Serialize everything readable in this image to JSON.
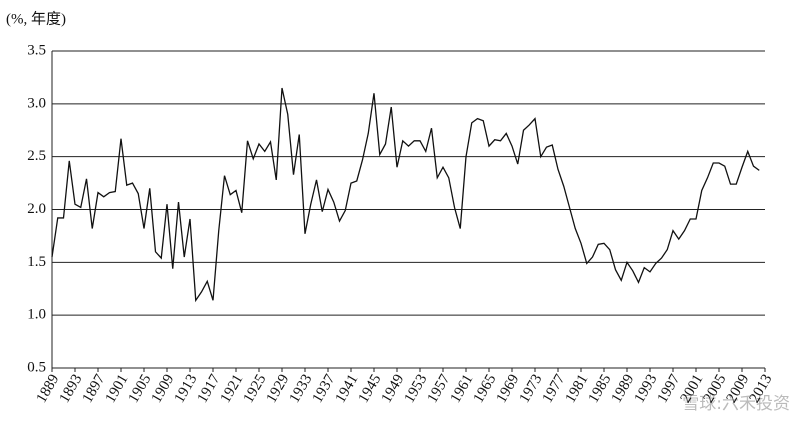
{
  "chart_data": {
    "type": "line",
    "unit_label": "(%, 年度)",
    "watermark": "雪球:六禾投资",
    "color": "#111111",
    "x": [
      1889,
      1890,
      1891,
      1892,
      1893,
      1894,
      1895,
      1896,
      1897,
      1898,
      1899,
      1900,
      1901,
      1902,
      1903,
      1904,
      1905,
      1906,
      1907,
      1908,
      1909,
      1910,
      1911,
      1912,
      1913,
      1914,
      1915,
      1916,
      1917,
      1918,
      1919,
      1920,
      1921,
      1922,
      1923,
      1924,
      1925,
      1926,
      1927,
      1928,
      1929,
      1930,
      1931,
      1932,
      1933,
      1934,
      1935,
      1936,
      1937,
      1938,
      1939,
      1940,
      1941,
      1942,
      1943,
      1944,
      1945,
      1946,
      1947,
      1948,
      1949,
      1950,
      1951,
      1952,
      1953,
      1954,
      1955,
      1956,
      1957,
      1958,
      1959,
      1960,
      1961,
      1962,
      1963,
      1964,
      1965,
      1966,
      1967,
      1968,
      1969,
      1970,
      1971,
      1972,
      1973,
      1974,
      1975,
      1976,
      1977,
      1978,
      1979,
      1980,
      1981,
      1982,
      1983,
      1984,
      1985,
      1986,
      1987,
      1988,
      1989,
      1990,
      1991,
      1992,
      1993,
      1994,
      1995,
      1996,
      1997,
      1998,
      1999,
      2000,
      2001,
      2002,
      2003,
      2004,
      2005,
      2006,
      2007,
      2008,
      2009,
      2010,
      2011,
      2012
    ],
    "values": [
      1.55,
      1.92,
      1.92,
      2.46,
      2.05,
      2.02,
      2.29,
      1.82,
      2.16,
      2.12,
      2.16,
      2.17,
      2.67,
      2.23,
      2.25,
      2.15,
      1.82,
      2.2,
      1.6,
      1.54,
      2.05,
      1.44,
      2.07,
      1.55,
      1.91,
      1.14,
      1.22,
      1.32,
      1.14,
      1.8,
      2.32,
      2.14,
      2.18,
      1.97,
      2.65,
      2.48,
      2.62,
      2.55,
      2.64,
      2.28,
      3.15,
      2.9,
      2.33,
      2.71,
      1.77,
      2.05,
      2.28,
      1.98,
      2.19,
      2.07,
      1.89,
      1.99,
      2.25,
      2.27,
      2.47,
      2.72,
      3.1,
      2.52,
      2.62,
      2.97,
      2.4,
      2.65,
      2.6,
      2.65,
      2.65,
      2.55,
      2.77,
      2.3,
      2.4,
      2.3,
      2.02,
      1.82,
      2.5,
      2.82,
      2.86,
      2.84,
      2.6,
      2.66,
      2.65,
      2.72,
      2.6,
      2.43,
      2.75,
      2.8,
      2.86,
      2.5,
      2.59,
      2.61,
      2.38,
      2.22,
      2.02,
      1.82,
      1.68,
      1.49,
      1.55,
      1.67,
      1.68,
      1.62,
      1.43,
      1.33,
      1.5,
      1.42,
      1.31,
      1.45,
      1.41,
      1.49,
      1.54,
      1.62,
      1.8,
      1.72,
      1.8,
      1.91,
      1.91,
      2.18,
      2.3,
      2.44,
      2.44,
      2.41,
      2.24,
      2.24,
      2.4,
      2.55,
      2.41,
      2.37
    ],
    "xlim": [
      1889,
      2013
    ],
    "xticks": [
      1889,
      1893,
      1897,
      1901,
      1905,
      1909,
      1913,
      1917,
      1921,
      1925,
      1929,
      1933,
      1937,
      1941,
      1945,
      1949,
      1953,
      1957,
      1961,
      1965,
      1969,
      1973,
      1977,
      1981,
      1985,
      1989,
      1993,
      1997,
      2001,
      2005,
      2009,
      2013
    ],
    "ylim": [
      0.5,
      3.5
    ],
    "yticks": [
      {
        "value": 0.5,
        "label": "0.5"
      },
      {
        "value": 1,
        "label": "1.0"
      },
      {
        "value": 1.5,
        "label": "1.5"
      },
      {
        "value": 2,
        "label": "2.0"
      },
      {
        "value": 2.5,
        "label": "2.5"
      },
      {
        "value": 3,
        "label": "3.0"
      },
      {
        "value": 3.5,
        "label": "3.5"
      }
    ],
    "grid": true
  }
}
